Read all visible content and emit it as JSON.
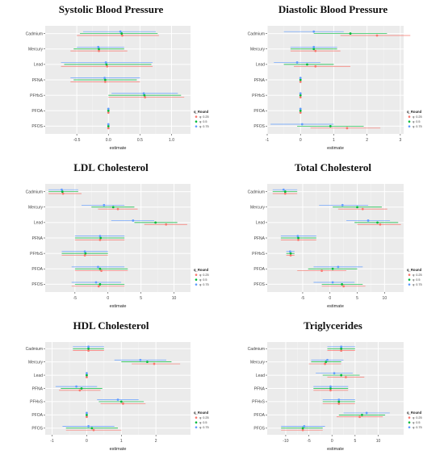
{
  "legend": {
    "title": "q_Round",
    "items": [
      {
        "label": "q: 0.25",
        "color": "#f8766d"
      },
      {
        "label": "q: 0.5",
        "color": "#00ba38"
      },
      {
        "label": "q: 0.75",
        "color": "#619cff"
      }
    ]
  },
  "chart_data": [
    {
      "type": "scatter",
      "title": "Systolic Blood Pressure",
      "xlabel": "estimate",
      "ylabel": "",
      "xlim": [
        -1.0,
        1.3
      ],
      "xticks": [
        -0.5,
        0.0,
        0.5,
        1.0
      ],
      "xtick_labels": [
        "-0.5",
        "0.0",
        "0.5",
        "1.0"
      ],
      "categories": [
        "Cadmium",
        "Mercury",
        "Lead",
        "PFNA",
        "PFHxS",
        "PFOA",
        "PFOS"
      ],
      "series": [
        {
          "name": "q: 0.25",
          "estimates": [
            0.22,
            -0.15,
            -0.02,
            -0.05,
            0.58,
            0.0,
            0.0
          ],
          "lower": [
            -0.5,
            -0.6,
            -0.75,
            -0.6,
            0.0,
            0.0,
            0.0
          ],
          "upper": [
            0.8,
            0.3,
            0.7,
            0.5,
            1.2,
            0.0,
            0.0
          ]
        },
        {
          "name": "q: 0.5",
          "estimates": [
            0.21,
            -0.15,
            -0.03,
            -0.05,
            0.57,
            0.0,
            0.0
          ],
          "lower": [
            -0.45,
            -0.55,
            -0.7,
            -0.55,
            0.0,
            0.0,
            0.0
          ],
          "upper": [
            0.78,
            0.25,
            0.68,
            0.45,
            1.15,
            0.0,
            0.0
          ]
        },
        {
          "name": "q: 0.75",
          "estimates": [
            0.19,
            -0.16,
            -0.04,
            -0.06,
            0.56,
            0.0,
            0.0
          ],
          "lower": [
            -0.4,
            -0.5,
            -0.75,
            -0.6,
            0.05,
            0.0,
            0.0
          ],
          "upper": [
            0.75,
            0.25,
            0.7,
            0.5,
            1.1,
            0.0,
            0.0
          ]
        }
      ],
      "grid": true,
      "legend_position": "bottom-right"
    },
    {
      "type": "scatter",
      "title": "Diastolic Blood Pressure",
      "xlabel": "estimate",
      "ylabel": "",
      "xlim": [
        -1.0,
        3.1
      ],
      "xticks": [
        -1,
        0,
        1,
        2,
        3
      ],
      "xtick_labels": [
        "-1",
        "0",
        "1",
        "2",
        "3"
      ],
      "categories": [
        "Cadmium",
        "Mercury",
        "Lead",
        "PFNA",
        "PFHxS",
        "PFOA",
        "PFOS"
      ],
      "series": [
        {
          "name": "q: 0.25",
          "estimates": [
            2.3,
            0.45,
            0.45,
            0.0,
            0.0,
            0.0,
            1.4
          ],
          "lower": [
            1.2,
            -0.3,
            -0.2,
            0.0,
            0.0,
            0.0,
            0.3
          ],
          "upper": [
            3.3,
            1.2,
            1.5,
            0.0,
            0.0,
            0.0,
            2.4
          ]
        },
        {
          "name": "q: 0.5",
          "estimates": [
            1.5,
            0.4,
            0.2,
            0.0,
            0.0,
            0.0,
            0.9
          ],
          "lower": [
            0.4,
            -0.3,
            -0.5,
            0.0,
            0.0,
            0.0,
            -0.1
          ],
          "upper": [
            2.6,
            1.1,
            1.0,
            0.0,
            0.0,
            0.0,
            1.9
          ]
        },
        {
          "name": "q: 0.75",
          "estimates": [
            0.4,
            0.4,
            -0.1,
            0.0,
            0.0,
            0.0,
            0.05
          ],
          "lower": [
            -0.5,
            -0.3,
            -0.8,
            0.0,
            0.0,
            0.0,
            -0.9
          ],
          "upper": [
            1.3,
            1.1,
            0.6,
            0.0,
            0.0,
            0.0,
            1.0
          ]
        }
      ],
      "grid": true,
      "legend_position": "bottom-right"
    },
    {
      "type": "scatter",
      "title": "LDL Cholesterol",
      "xlabel": "estimate",
      "ylabel": "",
      "xlim": [
        -9.5,
        12.5
      ],
      "xticks": [
        -5,
        0,
        5,
        10
      ],
      "xtick_labels": [
        "-5",
        "0",
        "5",
        "10"
      ],
      "categories": [
        "Cadmium",
        "Mercury",
        "Lead",
        "PFNA",
        "PFHxS",
        "PFOA",
        "PFOS"
      ],
      "series": [
        {
          "name": "q: 0.25",
          "estimates": [
            -6.8,
            1.5,
            8.8,
            -1.2,
            -3.5,
            -1.0,
            -1.4
          ],
          "lower": [
            -9.0,
            -1.5,
            5.5,
            -5.0,
            -7.0,
            -5.0,
            -5.5
          ],
          "upper": [
            -4.0,
            4.5,
            12.0,
            2.5,
            0.0,
            3.0,
            2.5
          ]
        },
        {
          "name": "q: 0.5",
          "estimates": [
            -6.9,
            0.8,
            7.2,
            -1.1,
            -3.4,
            -1.2,
            -1.2
          ],
          "lower": [
            -9.0,
            -2.5,
            4.0,
            -5.0,
            -7.0,
            -5.0,
            -5.0
          ],
          "upper": [
            -4.5,
            4.0,
            10.5,
            2.5,
            0.0,
            3.0,
            2.5
          ]
        },
        {
          "name": "q: 0.75",
          "estimates": [
            -7.0,
            -0.6,
            3.8,
            -1.2,
            -3.5,
            -1.5,
            -1.8
          ],
          "lower": [
            -9.0,
            -4.0,
            0.5,
            -5.0,
            -7.0,
            -5.5,
            -5.5
          ],
          "upper": [
            -4.5,
            2.5,
            7.0,
            2.5,
            0.0,
            2.5,
            2.0
          ]
        }
      ],
      "grid": true,
      "legend_position": "bottom-right"
    },
    {
      "type": "scatter",
      "title": "Total Cholesterol",
      "xlabel": "estimate",
      "ylabel": "",
      "xlim": [
        -11.5,
        13.5
      ],
      "xticks": [
        -5,
        0,
        5,
        10
      ],
      "xtick_labels": [
        "-5",
        "0",
        "5",
        "10"
      ],
      "categories": [
        "Cadmium",
        "Mercury",
        "Lead",
        "PFNA",
        "PFHxS",
        "PFOA",
        "PFOS"
      ],
      "series": [
        {
          "name": "q: 0.25",
          "estimates": [
            -8.2,
            6.0,
            9.2,
            -5.8,
            -7.2,
            -1.5,
            2.5
          ],
          "lower": [
            -10.5,
            1.5,
            5.0,
            -9.0,
            -8.0,
            -6.0,
            -1.5
          ],
          "upper": [
            -6.0,
            10.5,
            13.0,
            -2.5,
            -6.5,
            3.0,
            6.5
          ]
        },
        {
          "name": "q: 0.5",
          "estimates": [
            -8.2,
            5.0,
            8.7,
            -5.8,
            -7.2,
            0.5,
            2.2
          ],
          "lower": [
            -10.5,
            0.5,
            4.5,
            -9.0,
            -8.0,
            -4.0,
            -1.5
          ],
          "upper": [
            -6.0,
            9.5,
            12.5,
            -2.5,
            -6.5,
            5.0,
            6.0
          ]
        },
        {
          "name": "q: 0.75",
          "estimates": [
            -8.5,
            2.3,
            7.0,
            -5.9,
            -7.3,
            1.5,
            0.5
          ],
          "lower": [
            -10.5,
            -2.0,
            3.0,
            -9.0,
            -8.0,
            -3.0,
            -3.0
          ],
          "upper": [
            -6.0,
            7.0,
            11.0,
            -2.5,
            -6.5,
            6.0,
            4.5
          ]
        }
      ],
      "grid": true,
      "legend_position": "bottom-right"
    },
    {
      "type": "scatter",
      "title": "HDL Cholesterol",
      "xlabel": "estimate",
      "ylabel": "",
      "xlim": [
        -1.2,
        3.0
      ],
      "xticks": [
        -1,
        0,
        1,
        2
      ],
      "xtick_labels": [
        "-1",
        "0",
        "1",
        "2"
      ],
      "categories": [
        "Cadmium",
        "Mercury",
        "Lead",
        "PFNA",
        "PFHxS",
        "PFOA",
        "PFOS"
      ],
      "series": [
        {
          "name": "q: 0.25",
          "estimates": [
            0.05,
            1.95,
            0.0,
            -0.2,
            1.05,
            0.0,
            0.2
          ],
          "lower": [
            -0.4,
            1.3,
            0.0,
            -0.8,
            0.4,
            0.0,
            -0.6
          ],
          "upper": [
            0.5,
            2.7,
            0.0,
            0.4,
            1.7,
            0.0,
            1.0
          ]
        },
        {
          "name": "q: 0.5",
          "estimates": [
            0.05,
            1.75,
            0.0,
            -0.15,
            1.0,
            0.0,
            0.15
          ],
          "lower": [
            -0.4,
            1.0,
            0.0,
            -0.75,
            0.35,
            0.0,
            -0.6
          ],
          "upper": [
            0.5,
            2.45,
            0.0,
            0.45,
            1.65,
            0.0,
            0.9
          ]
        },
        {
          "name": "q: 0.75",
          "estimates": [
            0.05,
            1.55,
            0.0,
            -0.3,
            0.9,
            0.0,
            0.05
          ],
          "lower": [
            -0.4,
            0.8,
            0.0,
            -0.9,
            0.3,
            0.0,
            -0.7
          ],
          "upper": [
            0.5,
            2.3,
            0.0,
            0.3,
            1.5,
            0.0,
            0.8
          ]
        }
      ],
      "grid": true,
      "legend_position": "bottom-right"
    },
    {
      "type": "scatter",
      "title": "Triglycerides",
      "xlabel": "estimate",
      "ylabel": "",
      "xlim": [
        -14.0,
        15.5
      ],
      "xticks": [
        -10,
        -5,
        0,
        5,
        10
      ],
      "xtick_labels": [
        "-10",
        "-5",
        "0",
        "5",
        "10"
      ],
      "categories": [
        "Cadmium",
        "Mercury",
        "Lead",
        "PFNA",
        "PFHxS",
        "PFOA",
        "PFOS"
      ],
      "series": [
        {
          "name": "q: 0.25",
          "estimates": [
            2.0,
            -1.5,
            3.0,
            -0.3,
            1.5,
            6.0,
            -6.3
          ],
          "lower": [
            -1.0,
            -5.0,
            -1.0,
            -4.0,
            -2.0,
            1.0,
            -11.0
          ],
          "upper": [
            5.0,
            2.0,
            7.0,
            3.5,
            5.0,
            11.0,
            -2.0
          ]
        },
        {
          "name": "q: 0.5",
          "estimates": [
            2.0,
            -1.3,
            2.0,
            -0.3,
            1.5,
            6.5,
            -6.3
          ],
          "lower": [
            -1.0,
            -4.5,
            -2.0,
            -4.0,
            -2.0,
            1.5,
            -11.0
          ],
          "upper": [
            5.0,
            2.0,
            6.0,
            3.5,
            5.0,
            11.5,
            -2.0
          ]
        },
        {
          "name": "q: 0.75",
          "estimates": [
            2.0,
            -1.0,
            0.5,
            -0.3,
            1.5,
            7.5,
            -6.0
          ],
          "lower": [
            -1.0,
            -4.5,
            -3.5,
            -4.0,
            -2.0,
            2.5,
            -11.0
          ],
          "upper": [
            5.0,
            2.5,
            4.5,
            3.5,
            5.0,
            12.5,
            -1.5
          ]
        }
      ],
      "grid": true,
      "legend_position": "bottom-right"
    }
  ]
}
